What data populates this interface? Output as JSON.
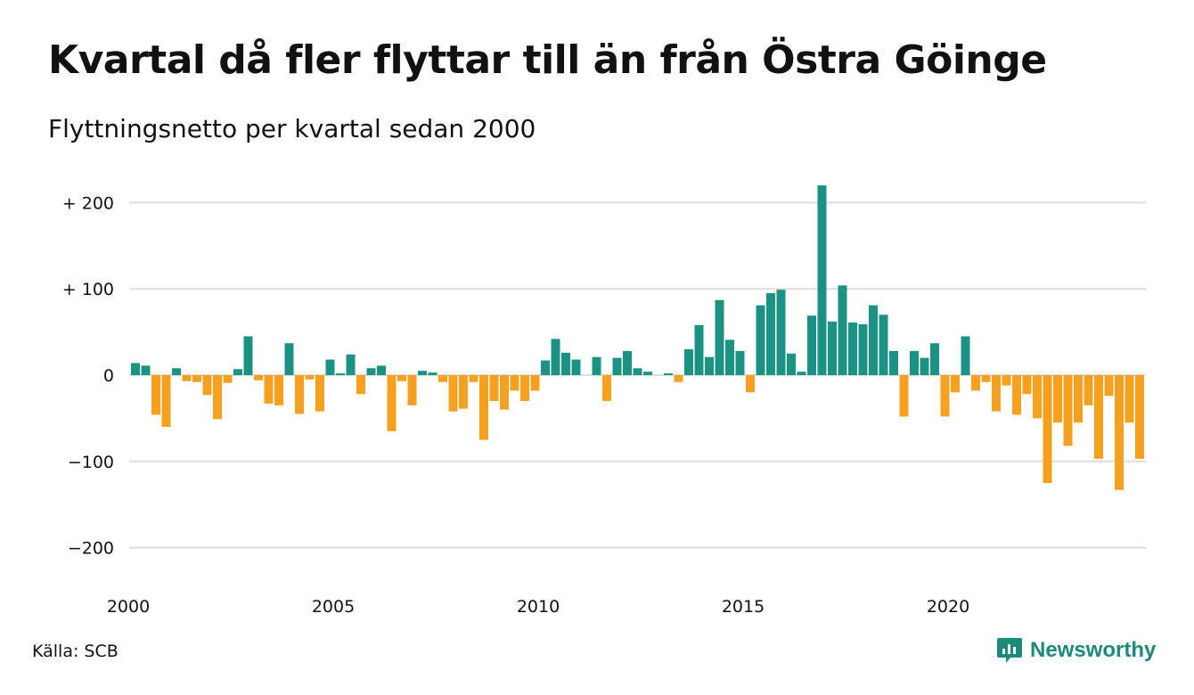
{
  "title": "Kvartal då fler flyttar till än från Östra Göinge",
  "subtitle": "Flyttningsnetto per kvartal sedan 2000",
  "source": "Källa: SCB",
  "brand": {
    "name": "Newsworthy",
    "icon": "newsworthy-logo-icon"
  },
  "colors": {
    "positive": "#1b9384",
    "negative": "#f5a01f",
    "grid": "#dddddd",
    "text": "#111111"
  },
  "chart_data": {
    "type": "bar",
    "xlabel": "",
    "ylabel": "",
    "ylim": [
      -220,
      225
    ],
    "y_ticks": [
      {
        "value": 200,
        "label": "+ 200"
      },
      {
        "value": 100,
        "label": "+ 100"
      },
      {
        "value": 0,
        "label": "0"
      },
      {
        "value": -100,
        "label": "−100"
      },
      {
        "value": -200,
        "label": "−200"
      }
    ],
    "x_ticks": [
      "2000",
      "2005",
      "2010",
      "2015",
      "2020"
    ],
    "grid": true,
    "legend": "none",
    "start_year": 2000,
    "values": [
      14,
      11,
      -46,
      -60,
      8,
      -7,
      -8,
      -23,
      -51,
      -9,
      7,
      45,
      -6,
      -33,
      -35,
      37,
      -45,
      -5,
      -42,
      18,
      2,
      24,
      -22,
      8,
      11,
      -65,
      -7,
      -35,
      5,
      3,
      -8,
      -42,
      -39,
      -8,
      -75,
      -30,
      -40,
      -18,
      -30,
      -18,
      17,
      42,
      26,
      18,
      0,
      21,
      -30,
      20,
      28,
      8,
      4,
      0,
      2,
      -8,
      30,
      58,
      21,
      87,
      41,
      28,
      -20,
      81,
      95,
      99,
      25,
      4,
      69,
      220,
      62,
      104,
      61,
      59,
      81,
      70,
      28,
      -48,
      28,
      20,
      37,
      -48,
      -20,
      45,
      -18,
      -8,
      -42,
      -12,
      -46,
      -22,
      -50,
      -125,
      -55,
      -82,
      -55,
      -35,
      -97,
      -24,
      -133,
      -55,
      -97
    ]
  }
}
